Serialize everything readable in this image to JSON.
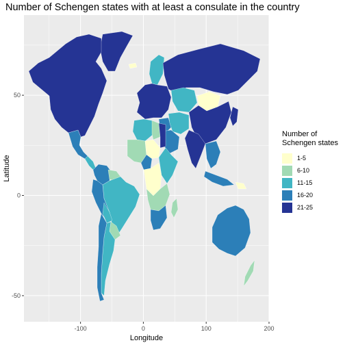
{
  "title": "Number of Schengen states with at least a consulate in the country",
  "axes": {
    "x_title": "Longitude",
    "y_title": "Latitude",
    "x_ticks": [
      {
        "value": -100,
        "label": "-100"
      },
      {
        "value": 0,
        "label": "0"
      },
      {
        "value": 100,
        "label": "100"
      },
      {
        "value": 200,
        "label": "200"
      }
    ],
    "y_ticks": [
      {
        "value": 50,
        "label": "50"
      },
      {
        "value": 0,
        "label": "0"
      },
      {
        "value": -50,
        "label": "-50"
      }
    ],
    "x_range": [
      -190,
      200
    ],
    "y_range": [
      -63,
      90
    ]
  },
  "legend": {
    "title_line1": "Number of",
    "title_line2": "Schengen states",
    "items": [
      {
        "label": "1-5",
        "color": "#FFFFCC"
      },
      {
        "label": "6-10",
        "color": "#A1DAB4"
      },
      {
        "label": "11-15",
        "color": "#41B6C4"
      },
      {
        "label": "16-20",
        "color": "#2C7FB8"
      },
      {
        "label": "21-25",
        "color": "#253494"
      }
    ]
  },
  "map_data": {
    "type": "choropleth",
    "panel_background": "#EBEBEB",
    "grid_color": "#FFFFFF",
    "regions": [
      {
        "region": "North America",
        "bin": "21-25"
      },
      {
        "region": "Greenland",
        "bin": "21-25"
      },
      {
        "region": "Mexico",
        "bin": "16-20"
      },
      {
        "region": "Central America",
        "bin": "11-15"
      },
      {
        "region": "Colombia / Venezuela",
        "bin": "16-20"
      },
      {
        "region": "Ecuador / Peru",
        "bin": "16-20"
      },
      {
        "region": "Brazil",
        "bin": "11-15"
      },
      {
        "region": "Guyana / Suriname",
        "bin": "6-10"
      },
      {
        "region": "Bolivia",
        "bin": "11-15"
      },
      {
        "region": "Paraguay / Uruguay",
        "bin": "6-10"
      },
      {
        "region": "Argentina",
        "bin": "11-15"
      },
      {
        "region": "Chile",
        "bin": "16-20"
      },
      {
        "region": "Russia",
        "bin": "21-25"
      },
      {
        "region": "Europe",
        "bin": "21-25"
      },
      {
        "region": "Scandinavia",
        "bin": "11-15"
      },
      {
        "region": "Iceland",
        "bin": "1-5"
      },
      {
        "region": "Kazakhstan",
        "bin": "11-15"
      },
      {
        "region": "Mongolia",
        "bin": "1-5"
      },
      {
        "region": "China",
        "bin": "21-25"
      },
      {
        "region": "India",
        "bin": "21-25"
      },
      {
        "region": "Middle East",
        "bin": "16-20"
      },
      {
        "region": "Saudi Arabia",
        "bin": "16-20"
      },
      {
        "region": "Iran / Central Asia",
        "bin": "11-15"
      },
      {
        "region": "Southeast Asia",
        "bin": "16-20"
      },
      {
        "region": "Japan / Korea",
        "bin": "21-25"
      },
      {
        "region": "Indonesia",
        "bin": "16-20"
      },
      {
        "region": "Papua New Guinea",
        "bin": "1-5"
      },
      {
        "region": "Australia",
        "bin": "16-20"
      },
      {
        "region": "New Zealand",
        "bin": "6-10"
      },
      {
        "region": "North Africa",
        "bin": "11-15"
      },
      {
        "region": "Libya",
        "bin": "6-10"
      },
      {
        "region": "Egypt",
        "bin": "21-25"
      },
      {
        "region": "West Africa",
        "bin": "6-10"
      },
      {
        "region": "Sahel",
        "bin": "1-5"
      },
      {
        "region": "Nigeria",
        "bin": "16-20"
      },
      {
        "region": "Central Africa",
        "bin": "1-5"
      },
      {
        "region": "East Africa",
        "bin": "11-15"
      },
      {
        "region": "Southern Africa",
        "bin": "6-10"
      },
      {
        "region": "South Africa",
        "bin": "16-20"
      },
      {
        "region": "Madagascar",
        "bin": "6-10"
      }
    ]
  }
}
